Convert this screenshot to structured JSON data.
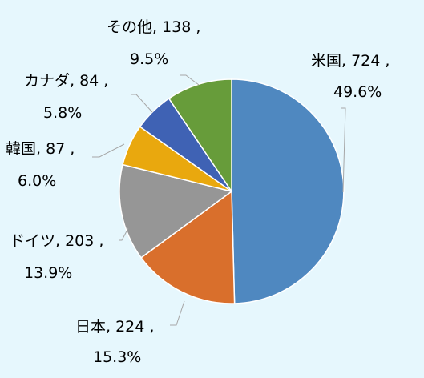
{
  "chart_data": {
    "type": "pie",
    "start_angle_deg": 0,
    "direction": "clockwise",
    "slices": [
      {
        "label": "米国",
        "value": 724,
        "value_text": "724",
        "percent": "49.6%",
        "color": "#4f88c0"
      },
      {
        "label": "日本",
        "value": 224,
        "value_text": "224",
        "percent": "15.3%",
        "color": "#d96f2c"
      },
      {
        "label": "ドイツ",
        "value": 203,
        "value_text": "203",
        "percent": "13.9%",
        "color": "#969696"
      },
      {
        "label": "韓国",
        "value": 87,
        "value_text": "87",
        "percent": "6.0%",
        "color": "#e9a80e"
      },
      {
        "label": "カナダ",
        "value": 84,
        "value_text": "84",
        "percent": "5.8%",
        "color": "#3f62b4"
      },
      {
        "label": "その他",
        "value": 138,
        "value_text": "138",
        "percent": "9.5%",
        "color": "#679c3a"
      }
    ]
  }
}
